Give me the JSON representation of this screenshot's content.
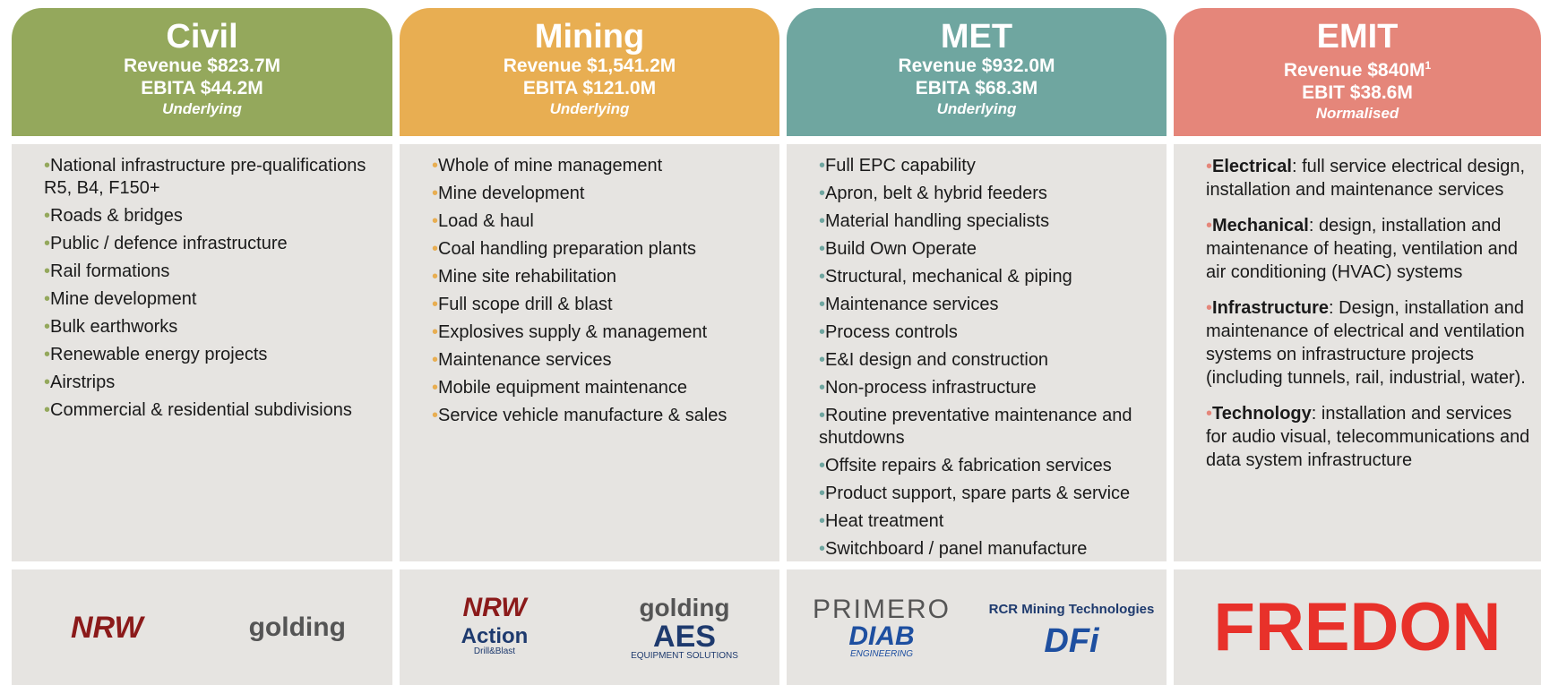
{
  "columns": [
    {
      "title": "Civil",
      "revenue": "Revenue $823.7M",
      "earnings": "EBITA $44.2M",
      "basis": "Underlying",
      "color": "#94a85c",
      "items": [
        "National infrastructure pre-qualifications R5, B4, F150+",
        "Roads & bridges",
        "Public / defence infrastructure",
        "Rail formations",
        "Mine development",
        "Bulk earthworks",
        "Renewable energy projects",
        "Airstrips",
        "Commercial & residential subdivisions"
      ],
      "logos": [
        {
          "text": "NRW"
        },
        {
          "text": "golding"
        }
      ]
    },
    {
      "title": "Mining",
      "revenue": "Revenue $1,541.2M",
      "earnings": "EBITA $121.0M",
      "basis": "Underlying",
      "color": "#e8ae52",
      "items": [
        "Whole of mine management",
        "Mine development",
        "Load & haul",
        "Coal handling preparation plants",
        "Mine site rehabilitation",
        "Full scope drill & blast",
        "Explosives supply & management",
        "Maintenance services",
        "Mobile equipment maintenance",
        "Service vehicle manufacture & sales"
      ],
      "logos": [
        {
          "text": "NRW"
        },
        {
          "text": "golding"
        },
        {
          "text": "Action",
          "sub": "Drill&Blast"
        },
        {
          "text": "AES",
          "sub": "EQUIPMENT SOLUTIONS"
        }
      ]
    },
    {
      "title": "MET",
      "revenue": "Revenue $932.0M",
      "earnings": "EBITA $68.3M",
      "basis": "Underlying",
      "color": "#6fa6a0",
      "items": [
        "Full EPC capability",
        "Apron, belt & hybrid feeders",
        "Material handling specialists",
        "Build Own Operate",
        "Structural, mechanical & piping",
        "Maintenance services",
        "Process controls",
        "E&I design and construction",
        "Non-process infrastructure",
        "Routine preventative maintenance and shutdowns",
        "Offsite repairs & fabrication services",
        "Product support, spare parts & service",
        "Heat treatment",
        "Switchboard / panel manufacture"
      ],
      "logos": [
        {
          "text": "PRIMERO"
        },
        {
          "text": "RCR Mining Technologies"
        },
        {
          "text": "DIAB",
          "sub": "ENGINEERING"
        },
        {
          "text": "DFi"
        }
      ]
    },
    {
      "title": "EMIT",
      "revenue": "Revenue $840M",
      "note": "1",
      "earnings": "EBIT $38.6M",
      "basis": "Normalised",
      "color": "#e5867a",
      "items": [
        {
          "bold": "Electrical",
          "text": ": full service electrical design, installation and maintenance services"
        },
        {
          "bold": "Mechanical",
          "text": ": design, installation and maintenance of heating, ventilation and air conditioning (HVAC) systems"
        },
        {
          "bold": "Infrastructure",
          "text": ": Design, installation and maintenance of electrical and ventilation systems on infrastructure projects (including tunnels, rail, industrial, water)."
        },
        {
          "bold": "Technology",
          "text": ": installation and services for audio visual, telecommunications and data system infrastructure"
        }
      ],
      "logos": [
        {
          "text": "FREDON"
        }
      ]
    }
  ]
}
